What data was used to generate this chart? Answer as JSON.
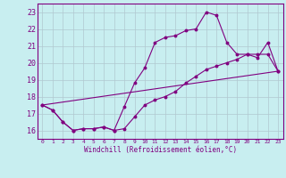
{
  "xlabel": "Windchill (Refroidissement éolien,°C)",
  "bg_color": "#c8eef0",
  "line_color": "#800080",
  "grid_color": "#b0c8d0",
  "xlim": [
    -0.5,
    23.5
  ],
  "ylim": [
    15.5,
    23.5
  ],
  "yticks": [
    16,
    17,
    18,
    19,
    20,
    21,
    22,
    23
  ],
  "xticks": [
    0,
    1,
    2,
    3,
    4,
    5,
    6,
    7,
    8,
    9,
    10,
    11,
    12,
    13,
    14,
    15,
    16,
    17,
    18,
    19,
    20,
    21,
    22,
    23
  ],
  "series1_x": [
    0,
    1,
    2,
    3,
    4,
    5,
    6,
    7,
    8,
    9,
    10,
    11,
    12,
    13,
    14,
    15,
    16,
    17,
    18,
    19,
    20,
    21,
    22,
    23
  ],
  "series1_y": [
    17.5,
    17.2,
    16.5,
    16.0,
    16.1,
    16.1,
    16.2,
    16.0,
    17.4,
    18.8,
    19.7,
    21.2,
    21.5,
    21.6,
    21.9,
    22.0,
    23.0,
    22.8,
    21.2,
    20.5,
    20.5,
    20.3,
    21.2,
    19.5
  ],
  "series2_x": [
    0,
    1,
    2,
    3,
    4,
    5,
    6,
    7,
    8,
    9,
    10,
    11,
    12,
    13,
    14,
    15,
    16,
    17,
    18,
    19,
    20,
    21,
    22,
    23
  ],
  "series2_y": [
    17.5,
    17.2,
    16.5,
    16.0,
    16.1,
    16.1,
    16.2,
    16.0,
    16.1,
    16.8,
    17.5,
    17.8,
    18.0,
    18.3,
    18.8,
    19.2,
    19.6,
    19.8,
    20.0,
    20.2,
    20.5,
    20.5,
    20.5,
    19.5
  ],
  "series3_x": [
    0,
    23
  ],
  "series3_y": [
    17.5,
    19.5
  ]
}
